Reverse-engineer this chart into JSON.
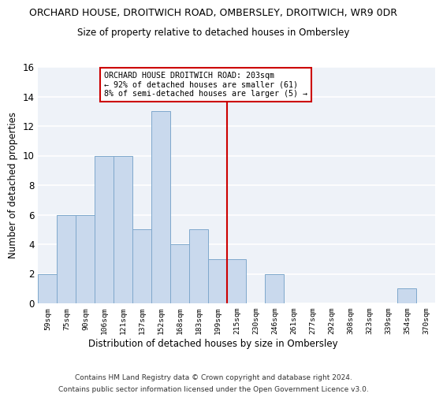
{
  "title": "ORCHARD HOUSE, DROITWICH ROAD, OMBERSLEY, DROITWICH, WR9 0DR",
  "subtitle": "Size of property relative to detached houses in Ombersley",
  "xlabel": "Distribution of detached houses by size in Ombersley",
  "ylabel": "Number of detached properties",
  "bins": [
    "59sqm",
    "75sqm",
    "90sqm",
    "106sqm",
    "121sqm",
    "137sqm",
    "152sqm",
    "168sqm",
    "183sqm",
    "199sqm",
    "215sqm",
    "230sqm",
    "246sqm",
    "261sqm",
    "277sqm",
    "292sqm",
    "308sqm",
    "323sqm",
    "339sqm",
    "354sqm",
    "370sqm"
  ],
  "values": [
    2,
    6,
    6,
    10,
    10,
    5,
    13,
    4,
    5,
    3,
    3,
    0,
    2,
    0,
    0,
    0,
    0,
    0,
    0,
    1,
    0
  ],
  "bar_color": "#c9d9ed",
  "bar_edgecolor": "#7fa8cc",
  "vline_x": 9.5,
  "vline_color": "#cc0000",
  "annotation_text": "ORCHARD HOUSE DROITWICH ROAD: 203sqm\n← 92% of detached houses are smaller (61)\n8% of semi-detached houses are larger (5) →",
  "annotation_box_edgecolor": "#cc0000",
  "ylim": [
    0,
    16
  ],
  "yticks": [
    0,
    2,
    4,
    6,
    8,
    10,
    12,
    14,
    16
  ],
  "bg_color": "#eef2f8",
  "footer1": "Contains HM Land Registry data © Crown copyright and database right 2024.",
  "footer2": "Contains public sector information licensed under the Open Government Licence v3.0."
}
